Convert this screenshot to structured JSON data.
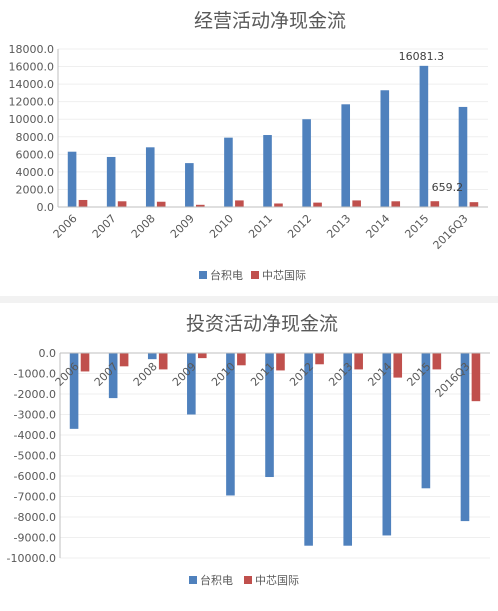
{
  "chart_data": [
    {
      "type": "bar",
      "title": "经营活动净现金流",
      "categories": [
        "2006",
        "2007",
        "2008",
        "2009",
        "2010",
        "2011",
        "2012",
        "2013",
        "2014",
        "2015",
        "2016Q3"
      ],
      "series": [
        {
          "name": "台积电",
          "values": [
            6300,
            5700,
            6800,
            5000,
            7900,
            8200,
            10000,
            11700,
            13300,
            16081.3,
            11400
          ]
        },
        {
          "name": "中芯国际",
          "values": [
            800,
            650,
            600,
            250,
            750,
            400,
            500,
            750,
            650,
            659.2,
            550
          ]
        }
      ],
      "yticks": [
        "18000.0",
        "16000.0",
        "14000.0",
        "12000.0",
        "10000.0",
        "8000.0",
        "6000.0",
        "4000.0",
        "2000.0",
        "0.0"
      ],
      "ylim": [
        0,
        18000
      ],
      "annotations": [
        "16081.3",
        "659.2"
      ],
      "colors": [
        "#4f81bd",
        "#c0504d"
      ],
      "legend_position": "bottom"
    },
    {
      "type": "bar",
      "title": "投资活动净现金流",
      "categories": [
        "2006",
        "2007",
        "2008",
        "2009",
        "2010",
        "2011",
        "2012",
        "2013",
        "2014",
        "2015",
        "2016Q3"
      ],
      "series": [
        {
          "name": "台积电",
          "values": [
            -3700,
            -2200,
            -300,
            -3000,
            -6950,
            -6050,
            -9400,
            -9400,
            -8900,
            -6600,
            -8200
          ]
        },
        {
          "name": "中芯国际",
          "values": [
            -900,
            -650,
            -800,
            -250,
            -600,
            -850,
            -550,
            -800,
            -1200,
            -800,
            -2350
          ]
        }
      ],
      "yticks": [
        "0.0",
        "-1000.0",
        "-2000.0",
        "-3000.0",
        "-4000.0",
        "-5000.0",
        "-6000.0",
        "-7000.0",
        "-8000.0",
        "-9000.0",
        "-10000.0"
      ],
      "ylim": [
        -10000,
        0
      ],
      "colors": [
        "#4f81bd",
        "#c0504d"
      ],
      "legend_position": "bottom"
    }
  ]
}
